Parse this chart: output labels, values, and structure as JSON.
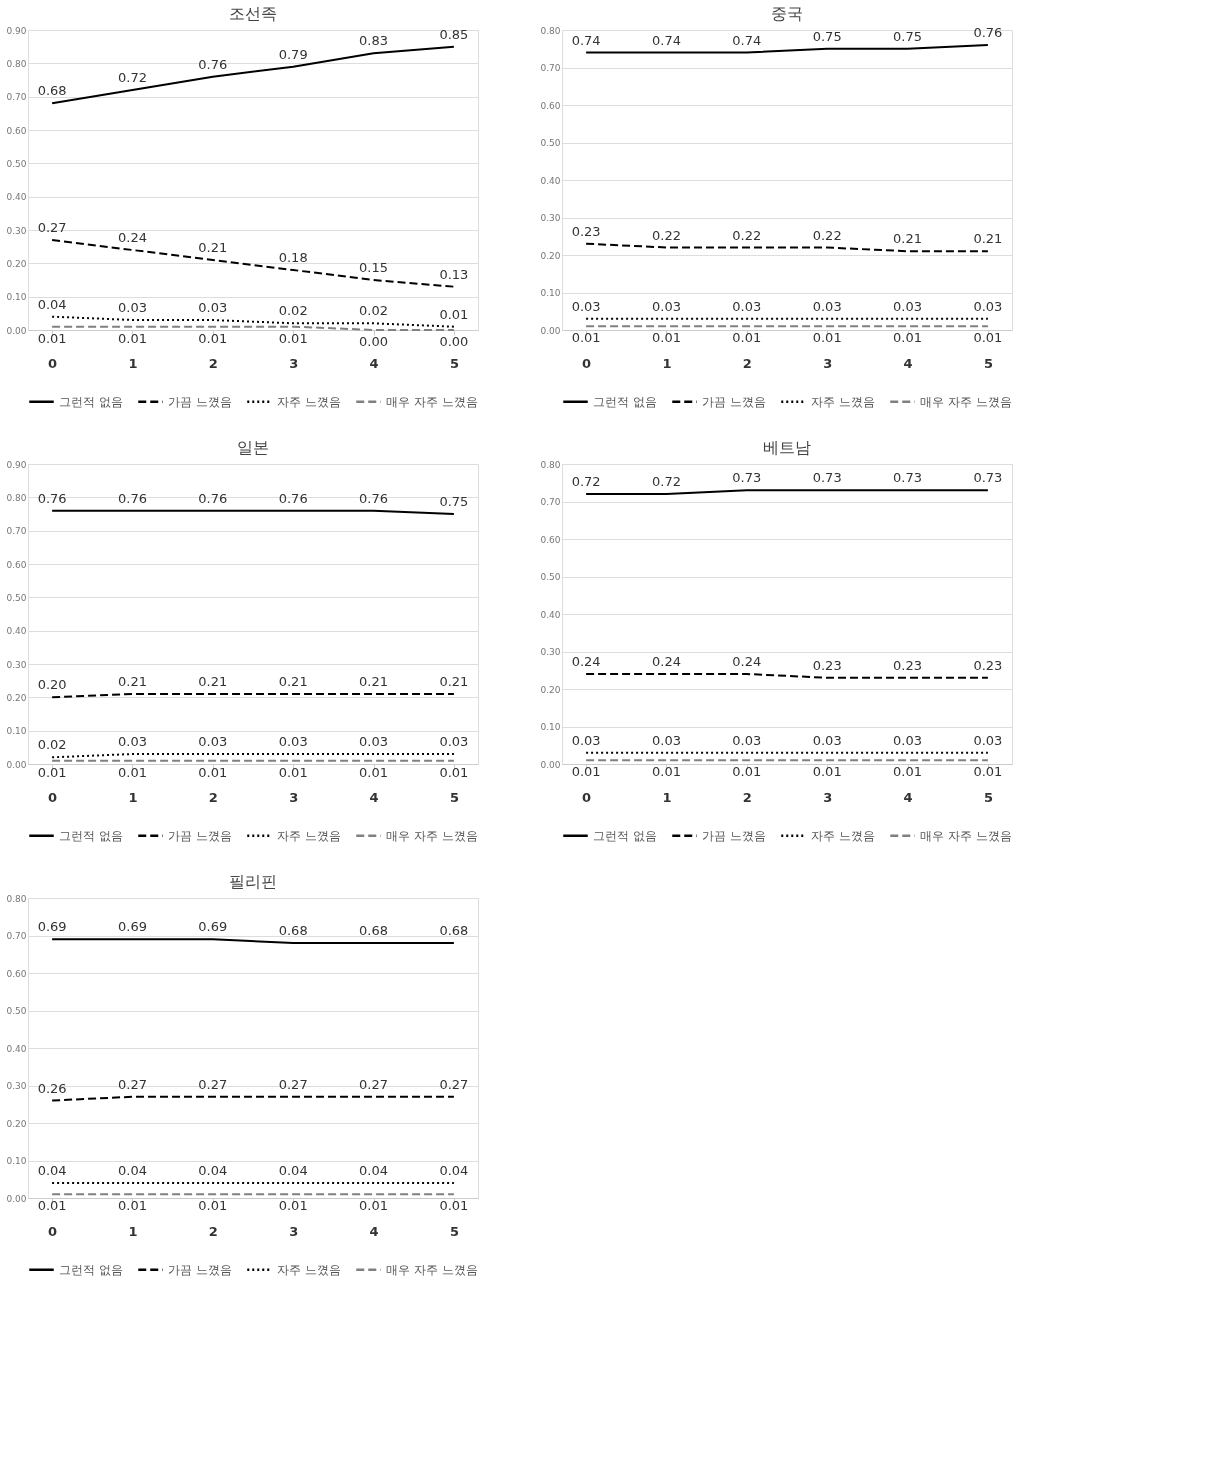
{
  "chart_data": [
    {
      "type": "line",
      "title": "조선족",
      "categories": [
        "0",
        "1",
        "2",
        "3",
        "4",
        "5"
      ],
      "ylim": [
        0,
        0.9
      ],
      "yticks": [
        {
          "value": 0,
          "label": "0.00"
        },
        {
          "value": 0.1,
          "label": "0.10"
        },
        {
          "value": 0.2,
          "label": "0.20"
        },
        {
          "value": 0.3,
          "label": "0.30"
        },
        {
          "value": 0.4,
          "label": "0.40"
        },
        {
          "value": 0.5,
          "label": "0.50"
        },
        {
          "value": 0.6,
          "label": "0.60"
        },
        {
          "value": 0.7,
          "label": "0.70"
        },
        {
          "value": 0.8,
          "label": "0.80"
        },
        {
          "value": 0.9,
          "label": "0.90"
        }
      ],
      "grid": "y",
      "legend": "bottom",
      "marker": "none",
      "data_labels": true,
      "series": [
        {
          "name": "그런적 없음",
          "color": "#000000",
          "line_style": "solid",
          "values": [
            0.68,
            0.72,
            0.76,
            0.79,
            0.83,
            0.85
          ],
          "value_labels": [
            "0.68",
            "0.72",
            "0.76",
            "0.79",
            "0.83",
            "0.85"
          ]
        },
        {
          "name": "가끔 느꼈음",
          "color": "#000000",
          "line_style": "dashed",
          "values": [
            0.27,
            0.24,
            0.21,
            0.18,
            0.15,
            0.13
          ],
          "value_labels": [
            "0.27",
            "0.24",
            "0.21",
            "0.18",
            "0.15",
            "0.13"
          ]
        },
        {
          "name": "자주 느꼈음",
          "color": "#000000",
          "line_style": "dotted",
          "values": [
            0.04,
            0.03,
            0.03,
            0.02,
            0.02,
            0.01
          ],
          "value_labels": [
            "0.04",
            "0.03",
            "0.03",
            "0.02",
            "0.02",
            "0.01"
          ]
        },
        {
          "name": "매우 자주 느꼈음",
          "color": "#808080",
          "line_style": "dashed",
          "values": [
            0.01,
            0.01,
            0.01,
            0.01,
            0.0,
            0.0
          ],
          "value_labels": [
            "0.01",
            "0.01",
            "0.01",
            "0.01",
            "0.00",
            "0.00"
          ]
        }
      ]
    },
    {
      "type": "line",
      "title": "중국",
      "categories": [
        "0",
        "1",
        "2",
        "3",
        "4",
        "5"
      ],
      "ylim": [
        0,
        0.8
      ],
      "yticks": [
        {
          "value": 0,
          "label": "0.00"
        },
        {
          "value": 0.1,
          "label": "0.10"
        },
        {
          "value": 0.2,
          "label": "0.20"
        },
        {
          "value": 0.3,
          "label": "0.30"
        },
        {
          "value": 0.4,
          "label": "0.40"
        },
        {
          "value": 0.5,
          "label": "0.50"
        },
        {
          "value": 0.6,
          "label": "0.60"
        },
        {
          "value": 0.7,
          "label": "0.70"
        },
        {
          "value": 0.8,
          "label": "0.80"
        }
      ],
      "grid": "y",
      "legend": "bottom",
      "marker": "none",
      "data_labels": true,
      "series": [
        {
          "name": "그런적 없음",
          "color": "#000000",
          "line_style": "solid",
          "values": [
            0.74,
            0.74,
            0.74,
            0.75,
            0.75,
            0.76
          ],
          "value_labels": [
            "0.74",
            "0.74",
            "0.74",
            "0.75",
            "0.75",
            "0.76"
          ]
        },
        {
          "name": "가끔 느꼈음",
          "color": "#000000",
          "line_style": "dashed",
          "values": [
            0.23,
            0.22,
            0.22,
            0.22,
            0.21,
            0.21
          ],
          "value_labels": [
            "0.23",
            "0.22",
            "0.22",
            "0.22",
            "0.21",
            "0.21"
          ]
        },
        {
          "name": "자주 느꼈음",
          "color": "#000000",
          "line_style": "dotted",
          "values": [
            0.03,
            0.03,
            0.03,
            0.03,
            0.03,
            0.03
          ],
          "value_labels": [
            "0.03",
            "0.03",
            "0.03",
            "0.03",
            "0.03",
            "0.03"
          ]
        },
        {
          "name": "매우 자주 느꼈음",
          "color": "#808080",
          "line_style": "dashed",
          "values": [
            0.01,
            0.01,
            0.01,
            0.01,
            0.01,
            0.01
          ],
          "value_labels": [
            "0.01",
            "0.01",
            "0.01",
            "0.01",
            "0.01",
            "0.01"
          ]
        }
      ]
    },
    {
      "type": "line",
      "title": "일본",
      "categories": [
        "0",
        "1",
        "2",
        "3",
        "4",
        "5"
      ],
      "ylim": [
        0,
        0.9
      ],
      "yticks": [
        {
          "value": 0,
          "label": "0.00"
        },
        {
          "value": 0.1,
          "label": "0.10"
        },
        {
          "value": 0.2,
          "label": "0.20"
        },
        {
          "value": 0.3,
          "label": "0.30"
        },
        {
          "value": 0.4,
          "label": "0.40"
        },
        {
          "value": 0.5,
          "label": "0.50"
        },
        {
          "value": 0.6,
          "label": "0.60"
        },
        {
          "value": 0.7,
          "label": "0.70"
        },
        {
          "value": 0.8,
          "label": "0.80"
        },
        {
          "value": 0.9,
          "label": "0.90"
        }
      ],
      "grid": "y",
      "legend": "bottom",
      "marker": "none",
      "data_labels": true,
      "series": [
        {
          "name": "그런적 없음",
          "color": "#000000",
          "line_style": "solid",
          "values": [
            0.76,
            0.76,
            0.76,
            0.76,
            0.76,
            0.75
          ],
          "value_labels": [
            "0.76",
            "0.76",
            "0.76",
            "0.76",
            "0.76",
            "0.75"
          ]
        },
        {
          "name": "가끔 느꼈음",
          "color": "#000000",
          "line_style": "dashed",
          "values": [
            0.2,
            0.21,
            0.21,
            0.21,
            0.21,
            0.21
          ],
          "value_labels": [
            "0.20",
            "0.21",
            "0.21",
            "0.21",
            "0.21",
            "0.21"
          ]
        },
        {
          "name": "자주 느꼈음",
          "color": "#000000",
          "line_style": "dotted",
          "values": [
            0.02,
            0.03,
            0.03,
            0.03,
            0.03,
            0.03
          ],
          "value_labels": [
            "0.02",
            "0.03",
            "0.03",
            "0.03",
            "0.03",
            "0.03"
          ]
        },
        {
          "name": "매우 자주 느꼈음",
          "color": "#808080",
          "line_style": "dashed",
          "values": [
            0.01,
            0.01,
            0.01,
            0.01,
            0.01,
            0.01
          ],
          "value_labels": [
            "0.01",
            "0.01",
            "0.01",
            "0.01",
            "0.01",
            "0.01"
          ]
        }
      ]
    },
    {
      "type": "line",
      "title": "베트남",
      "categories": [
        "0",
        "1",
        "2",
        "3",
        "4",
        "5"
      ],
      "ylim": [
        0,
        0.8
      ],
      "yticks": [
        {
          "value": 0,
          "label": "0.00"
        },
        {
          "value": 0.1,
          "label": "0.10"
        },
        {
          "value": 0.2,
          "label": "0.20"
        },
        {
          "value": 0.3,
          "label": "0.30"
        },
        {
          "value": 0.4,
          "label": "0.40"
        },
        {
          "value": 0.5,
          "label": "0.50"
        },
        {
          "value": 0.6,
          "label": "0.60"
        },
        {
          "value": 0.7,
          "label": "0.70"
        },
        {
          "value": 0.8,
          "label": "0.80"
        }
      ],
      "grid": "y",
      "legend": "bottom",
      "marker": "none",
      "data_labels": true,
      "series": [
        {
          "name": "그런적 없음",
          "color": "#000000",
          "line_style": "solid",
          "values": [
            0.72,
            0.72,
            0.73,
            0.73,
            0.73,
            0.73
          ],
          "value_labels": [
            "0.72",
            "0.72",
            "0.73",
            "0.73",
            "0.73",
            "0.73"
          ]
        },
        {
          "name": "가끔 느꼈음",
          "color": "#000000",
          "line_style": "dashed",
          "values": [
            0.24,
            0.24,
            0.24,
            0.23,
            0.23,
            0.23
          ],
          "value_labels": [
            "0.24",
            "0.24",
            "0.24",
            "0.23",
            "0.23",
            "0.23"
          ]
        },
        {
          "name": "자주 느꼈음",
          "color": "#000000",
          "line_style": "dotted",
          "values": [
            0.03,
            0.03,
            0.03,
            0.03,
            0.03,
            0.03
          ],
          "value_labels": [
            "0.03",
            "0.03",
            "0.03",
            "0.03",
            "0.03",
            "0.03"
          ]
        },
        {
          "name": "매우 자주 느꼈음",
          "color": "#808080",
          "line_style": "dashed",
          "values": [
            0.01,
            0.01,
            0.01,
            0.01,
            0.01,
            0.01
          ],
          "value_labels": [
            "0.01",
            "0.01",
            "0.01",
            "0.01",
            "0.01",
            "0.01"
          ]
        }
      ]
    },
    {
      "type": "line",
      "title": "필리핀",
      "categories": [
        "0",
        "1",
        "2",
        "3",
        "4",
        "5"
      ],
      "ylim": [
        0,
        0.8
      ],
      "yticks": [
        {
          "value": 0,
          "label": "0.00"
        },
        {
          "value": 0.1,
          "label": "0.10"
        },
        {
          "value": 0.2,
          "label": "0.20"
        },
        {
          "value": 0.3,
          "label": "0.30"
        },
        {
          "value": 0.4,
          "label": "0.40"
        },
        {
          "value": 0.5,
          "label": "0.50"
        },
        {
          "value": 0.6,
          "label": "0.60"
        },
        {
          "value": 0.7,
          "label": "0.70"
        },
        {
          "value": 0.8,
          "label": "0.80"
        }
      ],
      "grid": "y",
      "legend": "bottom",
      "marker": "none",
      "data_labels": true,
      "series": [
        {
          "name": "그런적 없음",
          "color": "#000000",
          "line_style": "solid",
          "values": [
            0.69,
            0.69,
            0.69,
            0.68,
            0.68,
            0.68
          ],
          "value_labels": [
            "0.69",
            "0.69",
            "0.69",
            "0.68",
            "0.68",
            "0.68"
          ]
        },
        {
          "name": "가끔 느꼈음",
          "color": "#000000",
          "line_style": "dashed",
          "values": [
            0.26,
            0.27,
            0.27,
            0.27,
            0.27,
            0.27
          ],
          "value_labels": [
            "0.26",
            "0.27",
            "0.27",
            "0.27",
            "0.27",
            "0.27"
          ]
        },
        {
          "name": "자주 느꼈음",
          "color": "#000000",
          "line_style": "dotted",
          "values": [
            0.04,
            0.04,
            0.04,
            0.04,
            0.04,
            0.04
          ],
          "value_labels": [
            "0.04",
            "0.04",
            "0.04",
            "0.04",
            "0.04",
            "0.04"
          ]
        },
        {
          "name": "매우 자주 느꼈음",
          "color": "#808080",
          "line_style": "dashed",
          "values": [
            0.01,
            0.01,
            0.01,
            0.01,
            0.01,
            0.01
          ],
          "value_labels": [
            "0.01",
            "0.01",
            "0.01",
            "0.01",
            "0.01",
            "0.01"
          ]
        }
      ]
    }
  ]
}
